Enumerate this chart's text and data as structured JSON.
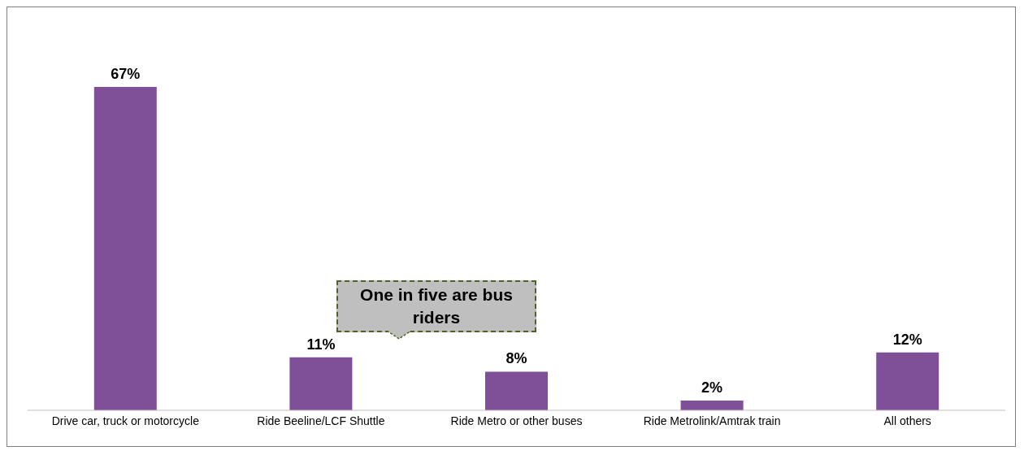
{
  "chart_data": {
    "type": "bar",
    "categories": [
      "Drive car, truck or motorcycle",
      "Ride Beeline/LCF Shuttle",
      "Ride Metro or other buses",
      "Ride Metrolink/Amtrak train",
      "All others"
    ],
    "values": [
      67,
      11,
      8,
      2,
      12
    ],
    "value_labels": [
      "67%",
      "11%",
      "8%",
      "2%",
      "12%"
    ],
    "color": "#7f5097",
    "annotations": [
      "One in five are bus riders"
    ]
  }
}
